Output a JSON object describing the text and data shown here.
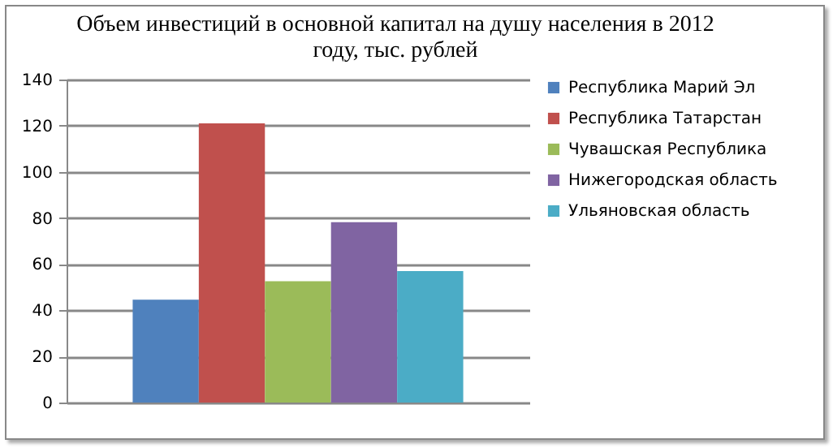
{
  "chart_data": {
    "type": "bar",
    "title": "Объем инвестиций в основной капитал на душу населения в 2012 году, тыс. рублей",
    "categories": [
      null
    ],
    "series": [
      {
        "name": "Республика Марий  Эл",
        "color": "#4f81bd",
        "values": [
          44.6
        ]
      },
      {
        "name": "Республика Татарстан",
        "color": "#c0504d",
        "values": [
          121
        ]
      },
      {
        "name": "Чувашская Республика",
        "color": "#9bbb59",
        "values": [
          52.6
        ]
      },
      {
        "name": "Нижегородская область",
        "color": "#8064a2",
        "values": [
          78.2
        ]
      },
      {
        "name": "Ульяновская область",
        "color": "#4bacc6",
        "values": [
          57
        ]
      }
    ],
    "ylim": [
      0,
      140
    ],
    "yticks": [
      0,
      20,
      40,
      60,
      80,
      100,
      120,
      140
    ],
    "grid": "y",
    "legend": "right"
  }
}
